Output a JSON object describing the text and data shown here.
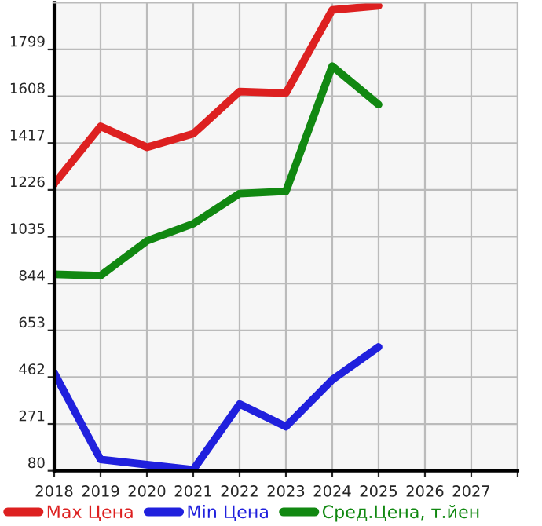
{
  "chart_data": {
    "type": "line",
    "x": [
      2018,
      2019,
      2020,
      2021,
      2022,
      2023,
      2024,
      2025
    ],
    "series": [
      {
        "name": "Max Цена",
        "color": "#dd2020",
        "values": [
          1251,
          1485,
          1400,
          1455,
          1627,
          1621,
          1960,
          1977
        ]
      },
      {
        "name": "Min Цена",
        "color": "#2020dd",
        "values": [
          479,
          126,
          105,
          84,
          352,
          260,
          451,
          585
        ]
      },
      {
        "name": "Сред.Цена, т.йен",
        "color": "#118811",
        "values": [
          882,
          876,
          1018,
          1088,
          1211,
          1220,
          1731,
          1574
        ]
      }
    ],
    "xlim": [
      2018,
      2028
    ],
    "xticks": [
      2018,
      2019,
      2020,
      2021,
      2022,
      2023,
      2024,
      2025,
      2026,
      2027,
      {
        "value": 2028,
        "label": null
      }
    ],
    "ylim": [
      80,
      1990
    ],
    "yticks": [
      80,
      271,
      462,
      653,
      844,
      1035,
      1226,
      1417,
      1608,
      1799
    ],
    "grid": true,
    "legend": "bottom",
    "marker": "none",
    "line_style": "solid"
  }
}
